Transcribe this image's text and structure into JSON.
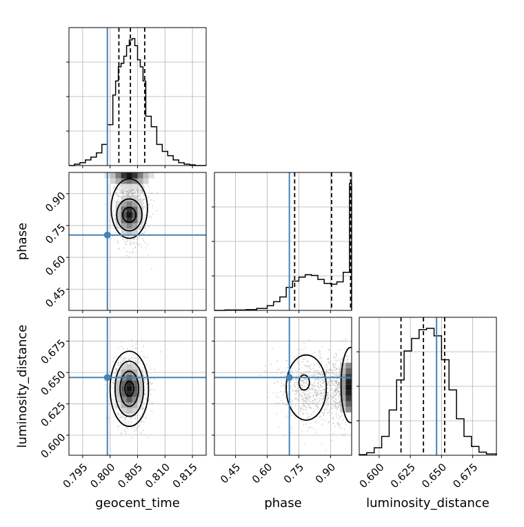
{
  "chart_data": {
    "type": "corner",
    "parameters": [
      "geocent_time",
      "phase",
      "luminosity_distance"
    ],
    "truths": {
      "geocent_time": 0.7995,
      "phase": 0.705,
      "luminosity_distance": 0.646
    },
    "truth_color": "#4682b4",
    "grid": true,
    "axes": {
      "geocent_time": {
        "range": [
          0.7925,
          0.8175
        ],
        "ticks": [
          0.795,
          0.8,
          0.805,
          0.81,
          0.815
        ],
        "tick_labels": [
          "0.795",
          "0.800",
          "0.805",
          "0.810",
          "0.815"
        ],
        "label": "geocent_time"
      },
      "phase": {
        "range": [
          0.35,
          1.0
        ],
        "ticks": [
          0.45,
          0.6,
          0.75,
          0.9
        ],
        "tick_labels": [
          "0.45",
          "0.60",
          "0.75",
          "0.90"
        ],
        "label": "phase"
      },
      "luminosity_distance": {
        "range": [
          0.584,
          0.694
        ],
        "ticks": [
          0.6,
          0.625,
          0.65,
          0.675
        ],
        "tick_labels": [
          "0.600",
          "0.625",
          "0.650",
          "0.675"
        ],
        "label": "luminosity_distance"
      }
    },
    "marginals": [
      {
        "parameter": "geocent_time",
        "quantiles": [
          0.8016,
          0.8037,
          0.8063
        ],
        "hist_edges": [
          0.7925,
          0.7935,
          0.7945,
          0.7955,
          0.7965,
          0.7975,
          0.7985,
          0.7995,
          0.8005,
          0.801,
          0.8015,
          0.802,
          0.8025,
          0.803,
          0.8035,
          0.804,
          0.8045,
          0.805,
          0.8055,
          0.806,
          0.8065,
          0.8075,
          0.8085,
          0.8095,
          0.8105,
          0.8115,
          0.8125,
          0.8135,
          0.8145,
          0.8155,
          0.8165,
          0.8175
        ],
        "hist_counts": [
          0,
          2,
          4,
          8,
          12,
          18,
          30,
          58,
          100,
          120,
          140,
          145,
          155,
          170,
          178,
          180,
          170,
          150,
          140,
          120,
          70,
          55,
          30,
          20,
          14,
          8,
          4,
          2,
          1,
          0,
          0
        ]
      },
      {
        "parameter": "phase",
        "quantiles": [
          0.73,
          0.905,
          0.995
        ],
        "hist_edges": [
          0.35,
          0.4,
          0.45,
          0.5,
          0.55,
          0.6,
          0.63,
          0.66,
          0.69,
          0.72,
          0.75,
          0.78,
          0.81,
          0.84,
          0.87,
          0.9,
          0.93,
          0.96,
          0.99,
          1.0
        ],
        "hist_counts": [
          0,
          1,
          1,
          2,
          5,
          12,
          22,
          34,
          58,
          74,
          84,
          90,
          88,
          78,
          68,
          66,
          72,
          96,
          320
        ]
      },
      {
        "parameter": "luminosity_distance",
        "quantiles": [
          0.6175,
          0.6355,
          0.6525
        ],
        "hist_edges": [
          0.584,
          0.59,
          0.596,
          0.602,
          0.608,
          0.614,
          0.62,
          0.626,
          0.632,
          0.638,
          0.644,
          0.65,
          0.656,
          0.662,
          0.668,
          0.674,
          0.68,
          0.686,
          0.694
        ],
        "hist_counts": [
          1,
          4,
          12,
          30,
          72,
          120,
          166,
          186,
          200,
          202,
          190,
          152,
          104,
          58,
          30,
          14,
          5,
          2
        ]
      }
    ],
    "joint": [
      {
        "x": "geocent_time",
        "y": "phase",
        "peak": [
          0.8035,
          0.8
        ],
        "note_peak_at_edge": "phase ~0.97"
      },
      {
        "x": "geocent_time",
        "y": "luminosity_distance",
        "peak": [
          0.8035,
          0.637
        ]
      },
      {
        "x": "phase",
        "y": "luminosity_distance",
        "peak": [
          0.78,
          0.64
        ]
      }
    ]
  }
}
